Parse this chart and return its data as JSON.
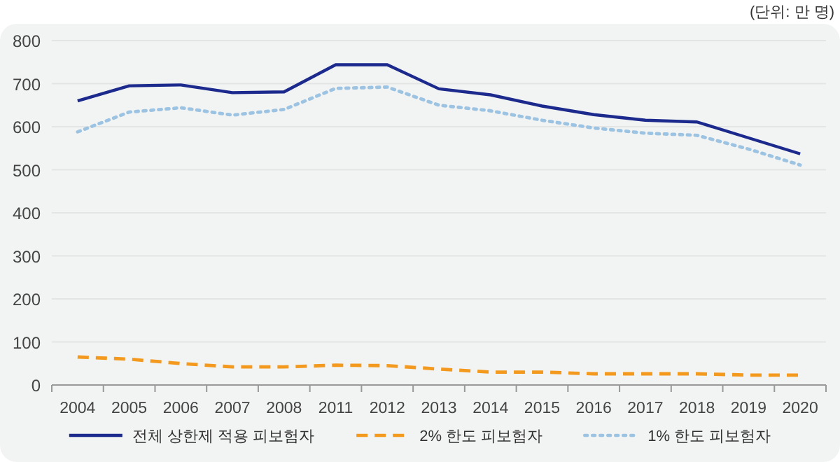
{
  "chart_data": {
    "type": "line",
    "categories": [
      "2004",
      "2005",
      "2006",
      "2007",
      "2008",
      "2011",
      "2012",
      "2013",
      "2014",
      "2015",
      "2016",
      "2017",
      "2018",
      "2019",
      "2020"
    ],
    "series": [
      {
        "name": "전체 상한제 적용 피보험자",
        "color": "#1b2a8c",
        "line_style": "solid",
        "values": [
          660,
          695,
          697,
          679,
          681,
          744,
          744,
          688,
          674,
          648,
          628,
          615,
          611,
          574,
          537
        ]
      },
      {
        "name": "2% 한도 피보험자",
        "color": "#f39a1e",
        "line_style": "dashed",
        "values": [
          65,
          60,
          50,
          42,
          42,
          46,
          45,
          37,
          30,
          30,
          26,
          26,
          26,
          23,
          23
        ]
      },
      {
        "name": "1% 한도 피보험자",
        "color": "#9cc3e2",
        "line_style": "dotted",
        "values": [
          588,
          634,
          644,
          627,
          640,
          689,
          692,
          650,
          637,
          615,
          597,
          585,
          580,
          548,
          511
        ]
      }
    ],
    "ylim": [
      0,
      800
    ],
    "yticks": [
      0,
      100,
      200,
      300,
      400,
      500,
      600,
      700,
      800
    ],
    "grid": "y",
    "legend": "bottom",
    "marker": "none",
    "annotations": [
      "(단위: 만 명)"
    ]
  }
}
